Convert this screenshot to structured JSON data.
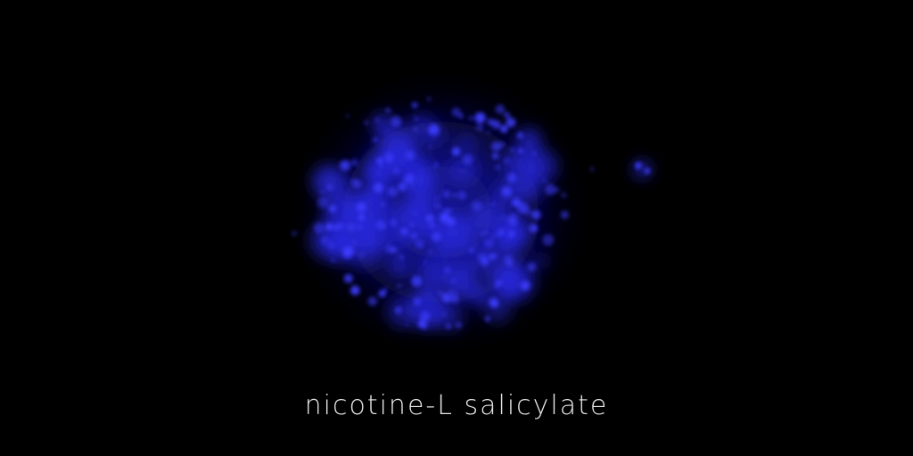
{
  "caption": "nicotine-L salicylate",
  "colors": {
    "background": "#000000",
    "glow": "#2a2ae8",
    "glow_bright": "#3c3cff",
    "caption": "#e6e6e6"
  }
}
